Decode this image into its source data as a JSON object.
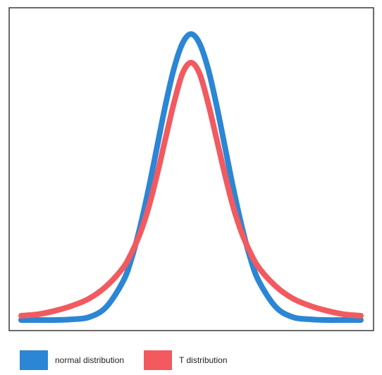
{
  "chart_data": {
    "type": "line",
    "title": "",
    "xlabel": "",
    "ylabel": "",
    "grid": false,
    "legend_position": "bottom-left",
    "x": [
      -5,
      -4.5,
      -4,
      -3.5,
      -3,
      -2.5,
      -2,
      -1.75,
      -1.5,
      -1.25,
      -1,
      -0.75,
      -0.5,
      -0.25,
      0,
      0.25,
      0.5,
      0.75,
      1,
      1.25,
      1.5,
      1.75,
      2,
      2.5,
      3,
      3.5,
      4,
      4.5,
      5
    ],
    "xlim": [
      -5,
      5
    ],
    "ylim": [
      0,
      0.42
    ],
    "series": [
      {
        "name": "normal distribution",
        "color": "#2b86d5",
        "values": [
          0.0,
          0.0,
          0.0,
          0.001,
          0.004,
          0.018,
          0.054,
          0.086,
          0.13,
          0.183,
          0.242,
          0.301,
          0.352,
          0.387,
          0.4,
          0.387,
          0.352,
          0.301,
          0.242,
          0.183,
          0.13,
          0.086,
          0.054,
          0.018,
          0.004,
          0.001,
          0.0,
          0.0,
          0.0
        ]
      },
      {
        "name": "T distribution",
        "color": "#f25a5f",
        "values": [
          0.006,
          0.008,
          0.013,
          0.02,
          0.03,
          0.047,
          0.073,
          0.094,
          0.121,
          0.157,
          0.203,
          0.254,
          0.304,
          0.345,
          0.36,
          0.345,
          0.304,
          0.254,
          0.203,
          0.157,
          0.121,
          0.094,
          0.073,
          0.047,
          0.03,
          0.02,
          0.013,
          0.008,
          0.006
        ]
      }
    ]
  },
  "legend": {
    "items": [
      {
        "label": "normal distribution",
        "color": "#2b86d5"
      },
      {
        "label": "T distribution",
        "color": "#f25a5f"
      }
    ]
  }
}
